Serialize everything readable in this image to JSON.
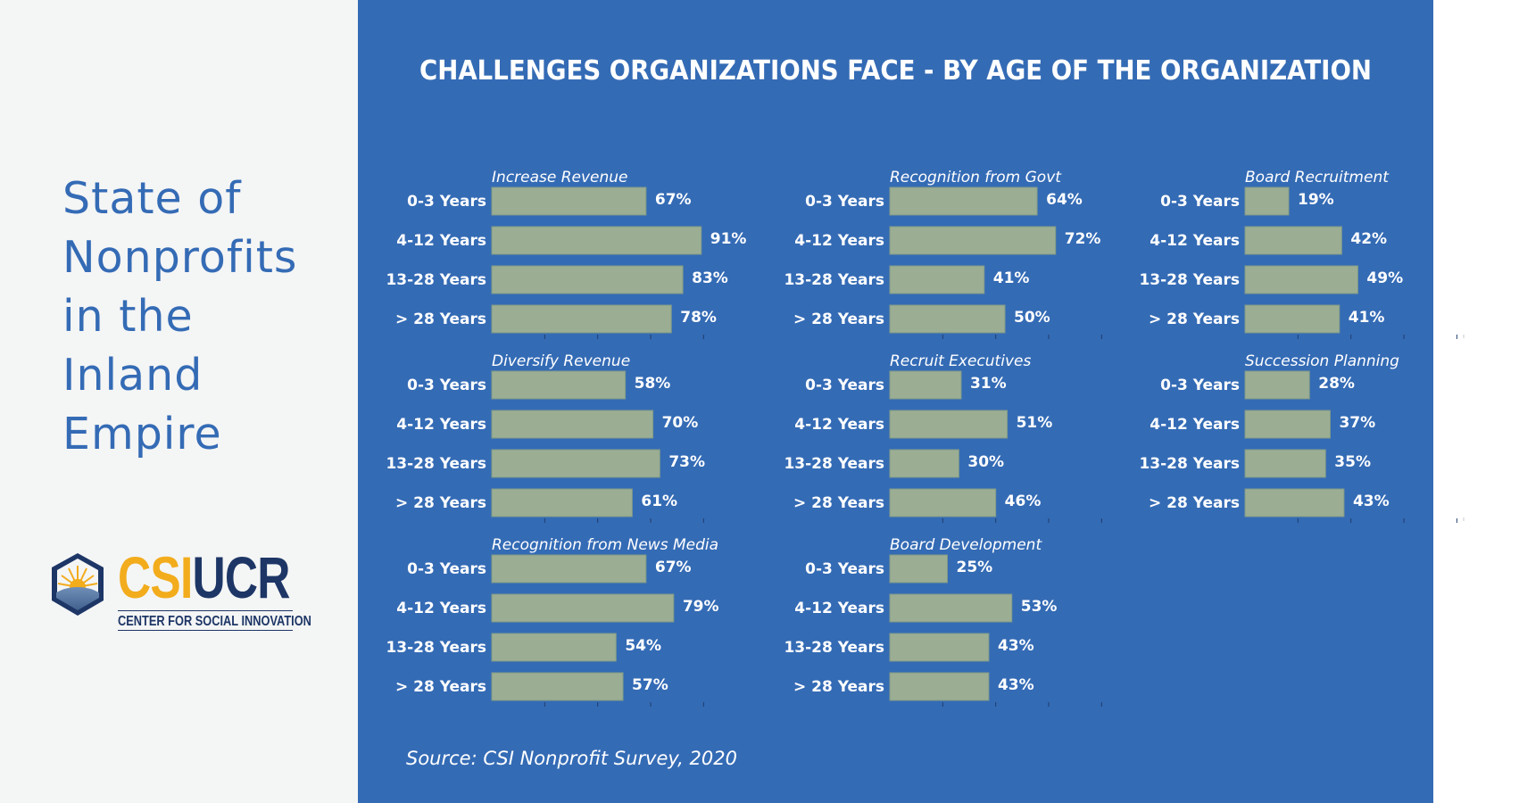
{
  "sidebar": {
    "title_lines": [
      "State of",
      "Nonprofits",
      "in the",
      "Inland",
      "Empire"
    ],
    "logo": {
      "part1": "CSI",
      "part2": "UCR",
      "subtitle": "CENTER FOR SOCIAL INNOVATION",
      "colors": {
        "gold": "#f2ac1c",
        "navy": "#1d3666"
      }
    }
  },
  "colors": {
    "panel_bg": "#346bb5",
    "bar_fill": "#9bae94",
    "title_text": "#346bb5",
    "text_on_panel": "#ffffff"
  },
  "chart_data": {
    "type": "bar",
    "orientation": "horizontal",
    "title": "CHALLENGES ORGANIZATIONS FACE - BY AGE OF THE ORGANIZATION",
    "source": "Source: CSI Nonprofit Survey, 2020",
    "categories": [
      "0-3 Years",
      "4-12 Years",
      "13-28 Years",
      "> 28 Years"
    ],
    "value_suffix": "%",
    "xlim": [
      0,
      100
    ],
    "grid": false,
    "panels": [
      {
        "title": "Increase Revenue",
        "values": [
          67,
          91,
          83,
          78
        ]
      },
      {
        "title": "Diversify Revenue",
        "values": [
          58,
          70,
          73,
          61
        ]
      },
      {
        "title": "Recognition from News Media",
        "values": [
          67,
          79,
          54,
          57
        ]
      },
      {
        "title": "Recognition from Govt",
        "values": [
          64,
          72,
          41,
          50
        ]
      },
      {
        "title": "Recruit Executives",
        "values": [
          31,
          51,
          30,
          46
        ]
      },
      {
        "title": "Board Development",
        "values": [
          25,
          53,
          43,
          43
        ]
      },
      {
        "title": "Board Recruitment",
        "values": [
          19,
          42,
          49,
          41
        ]
      },
      {
        "title": "Succession Planning",
        "values": [
          28,
          37,
          35,
          43
        ]
      }
    ]
  }
}
